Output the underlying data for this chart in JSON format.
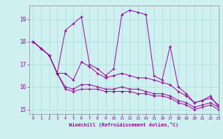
{
  "xlabel": "Windchill (Refroidissement éolien,°C)",
  "xlim": [
    -0.5,
    23
  ],
  "ylim": [
    14.8,
    19.6
  ],
  "yticks": [
    15,
    16,
    17,
    18,
    19
  ],
  "xticks": [
    0,
    1,
    2,
    3,
    4,
    5,
    6,
    7,
    8,
    9,
    10,
    11,
    12,
    13,
    14,
    15,
    16,
    17,
    18,
    19,
    20,
    21,
    22,
    23
  ],
  "background_color": "#cff0f0",
  "grid_color": "#aadada",
  "line_color": "#990099",
  "lines": [
    [
      18.0,
      17.7,
      17.4,
      16.6,
      18.5,
      18.8,
      19.1,
      17.0,
      16.8,
      16.5,
      16.8,
      19.2,
      19.4,
      19.3,
      19.2,
      16.5,
      16.3,
      17.8,
      16.0,
      15.7,
      15.3,
      15.4,
      15.6,
      15.1
    ],
    [
      18.0,
      17.7,
      17.4,
      16.6,
      16.6,
      16.3,
      17.1,
      16.9,
      16.6,
      16.4,
      16.5,
      16.6,
      16.5,
      16.4,
      16.4,
      16.3,
      16.2,
      16.1,
      15.8,
      15.6,
      15.3,
      15.4,
      15.5,
      15.2
    ],
    [
      18.0,
      17.7,
      17.4,
      16.6,
      16.0,
      15.9,
      16.1,
      16.1,
      16.0,
      15.9,
      15.9,
      16.0,
      15.9,
      15.9,
      15.8,
      15.7,
      15.7,
      15.6,
      15.4,
      15.3,
      15.1,
      15.2,
      15.3,
      15.1
    ],
    [
      18.0,
      17.7,
      17.4,
      16.6,
      15.9,
      15.8,
      15.9,
      15.9,
      15.9,
      15.8,
      15.8,
      15.8,
      15.8,
      15.7,
      15.7,
      15.6,
      15.6,
      15.5,
      15.3,
      15.2,
      15.0,
      15.1,
      15.2,
      15.0
    ]
  ]
}
